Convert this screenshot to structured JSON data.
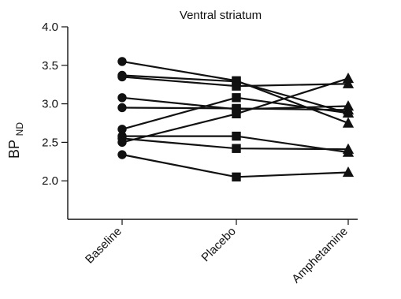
{
  "chart_data": {
    "type": "line",
    "title": "Ventral striatum",
    "ylabel_main": "BP",
    "ylabel_sub": "ND",
    "ylim": [
      1.5,
      4.0
    ],
    "yticks": [
      "4.0",
      "3.5",
      "3.0",
      "2.5",
      "2.0"
    ],
    "ytick_values": [
      4.0,
      3.5,
      3.0,
      2.5,
      2.0
    ],
    "categories": [
      "Baseline",
      "Placebo",
      "Amphetamine"
    ],
    "series": [
      {
        "values": [
          3.55,
          3.3,
          2.75
        ]
      },
      {
        "values": [
          3.37,
          3.29,
          2.88
        ]
      },
      {
        "values": [
          3.35,
          3.23,
          3.26
        ]
      },
      {
        "values": [
          3.08,
          2.93,
          2.97
        ]
      },
      {
        "values": [
          2.95,
          2.94,
          2.92
        ]
      },
      {
        "values": [
          2.67,
          3.08,
          2.88
        ]
      },
      {
        "values": [
          2.58,
          2.58,
          2.37
        ]
      },
      {
        "values": [
          2.55,
          2.42,
          2.41
        ]
      },
      {
        "values": [
          2.5,
          2.87,
          3.33
        ]
      },
      {
        "values": [
          2.34,
          2.05,
          2.11
        ]
      }
    ],
    "marker_styles": [
      "circle",
      "square",
      "triangle"
    ],
    "grid": false,
    "line_color": "#111111",
    "marker_color": "#111111"
  }
}
